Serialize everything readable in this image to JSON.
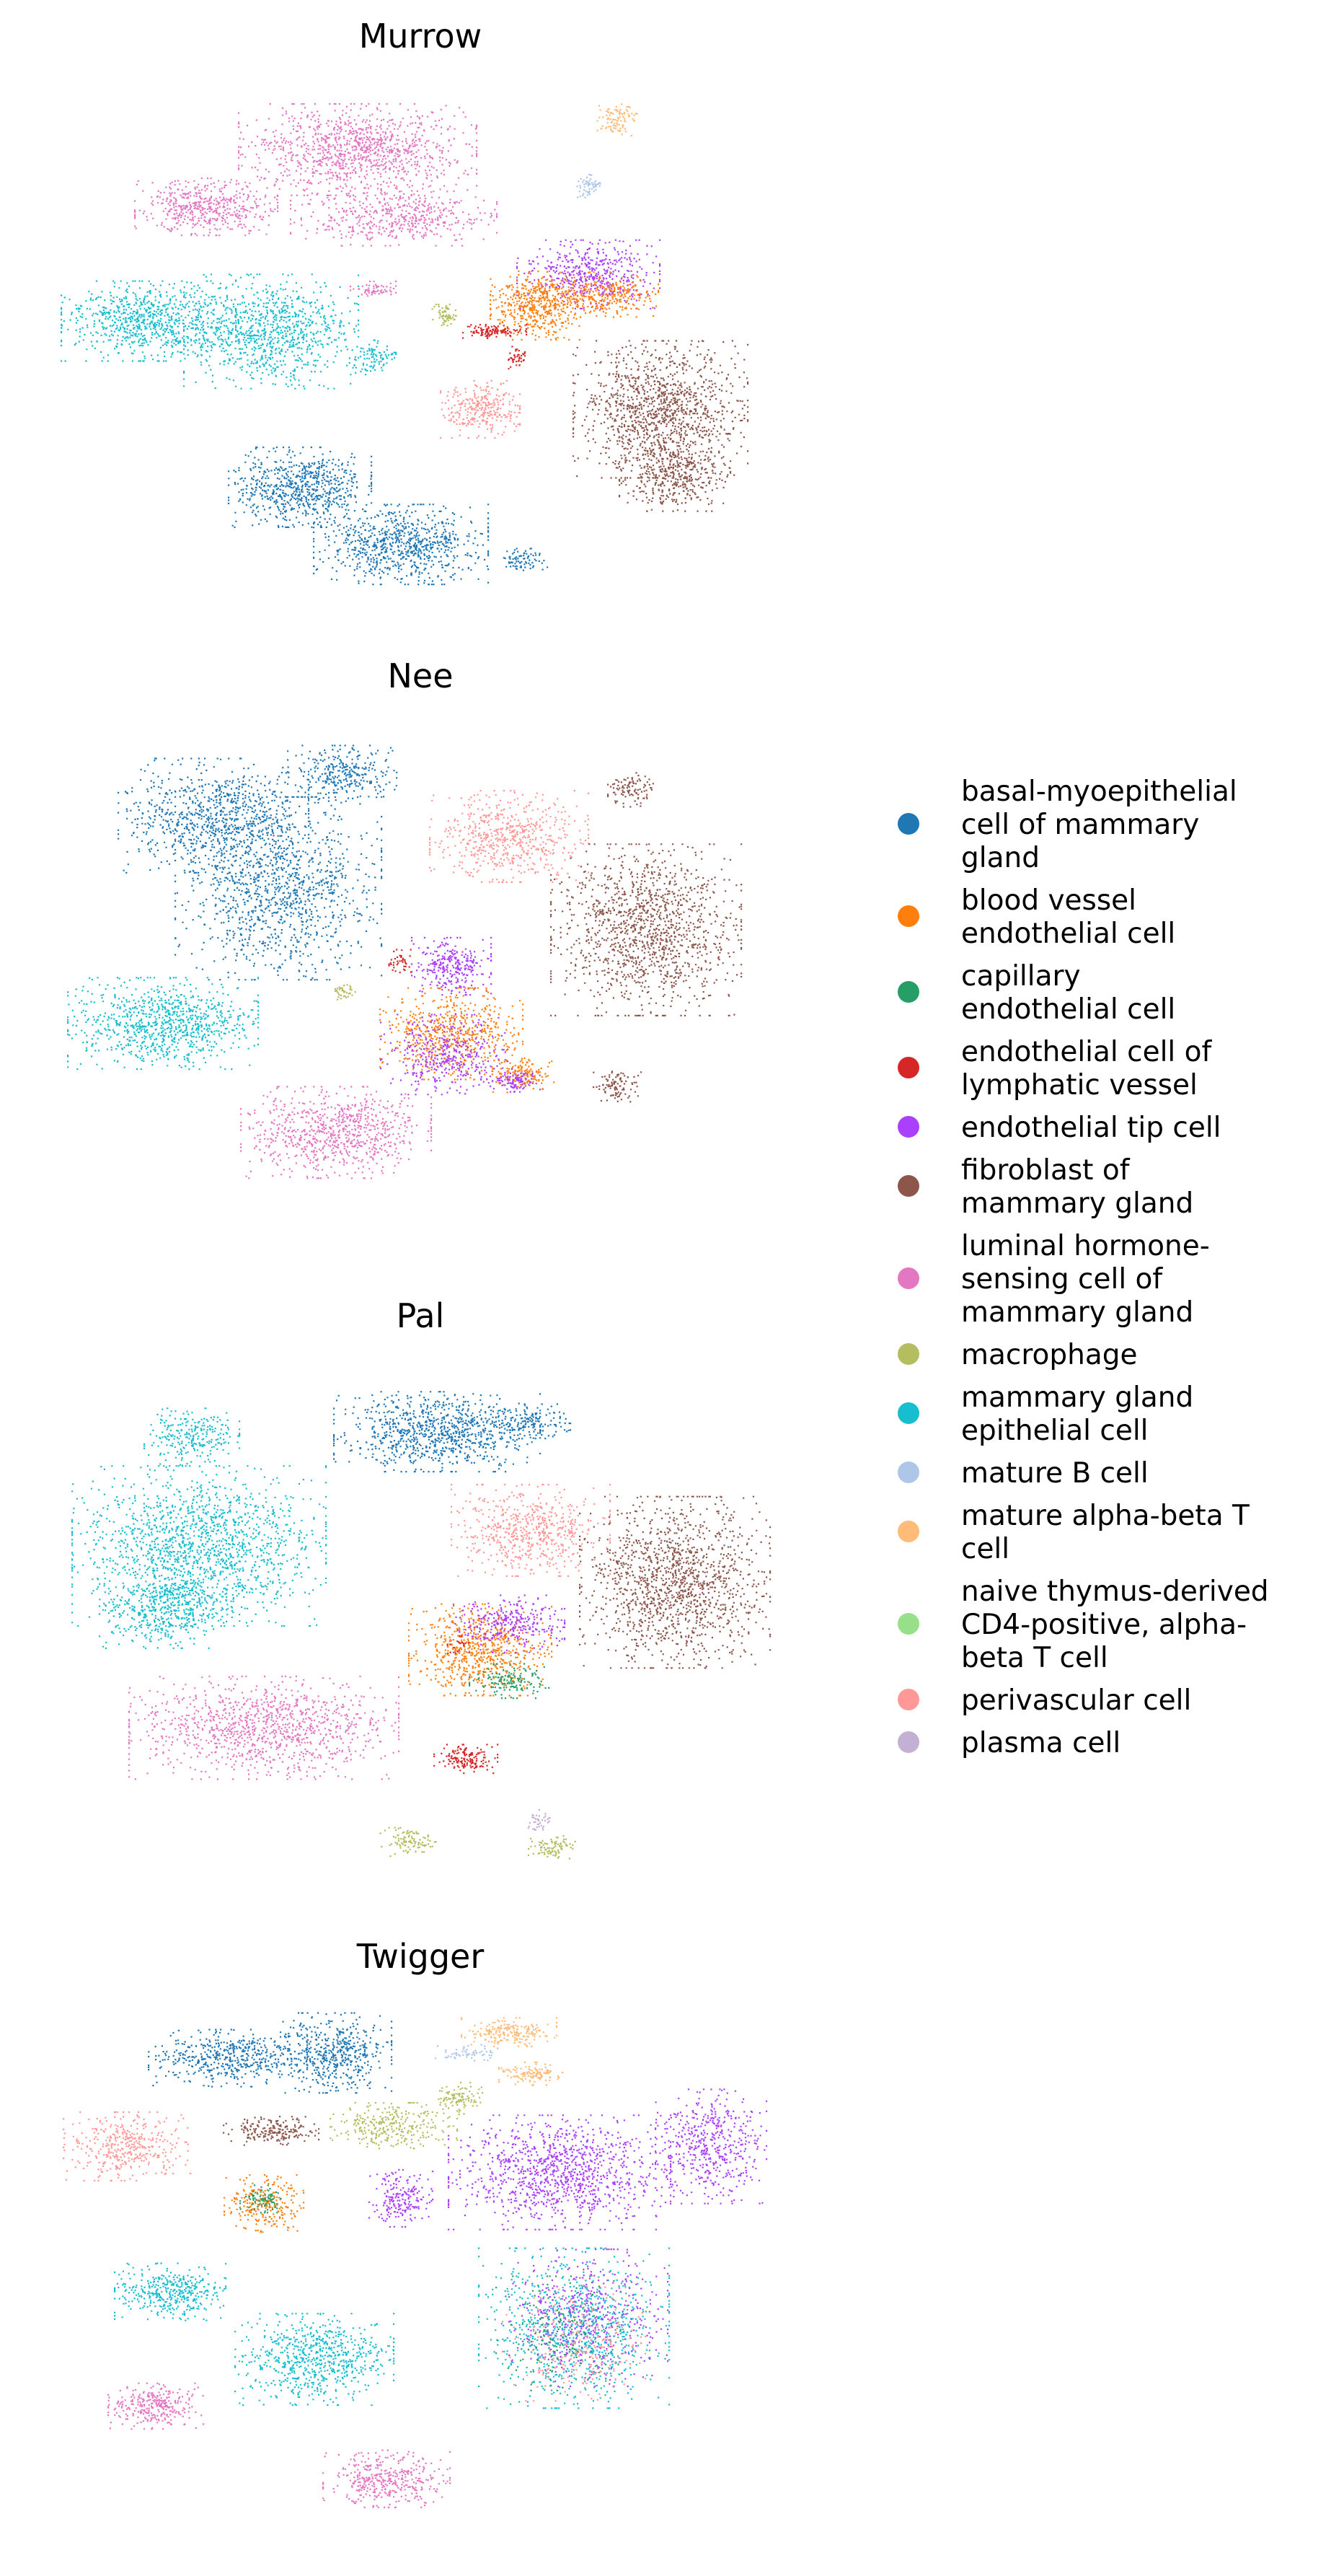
{
  "chart_data": {
    "type": "scatter",
    "subtype": "umap-embedding",
    "grid": false,
    "axes_visible": false,
    "legend_placement": "right",
    "panels": [
      {
        "title": "Murrow",
        "clusters": [
          {
            "cat": "luminal hormone-sensing cell of mammary gland",
            "cx": 0.42,
            "cy": 0.12,
            "rx": 0.15,
            "ry": 0.08,
            "n": 1100
          },
          {
            "cat": "luminal hormone-sensing cell of mammary gland",
            "cx": 0.21,
            "cy": 0.23,
            "rx": 0.09,
            "ry": 0.05,
            "n": 500
          },
          {
            "cat": "luminal hormone-sensing cell of mammary gland",
            "cx": 0.47,
            "cy": 0.25,
            "rx": 0.13,
            "ry": 0.05,
            "n": 500
          },
          {
            "cat": "mammary gland epithelial cell",
            "cx": 0.13,
            "cy": 0.45,
            "rx": 0.11,
            "ry": 0.07,
            "n": 800
          },
          {
            "cat": "mammary gland epithelial cell",
            "cx": 0.3,
            "cy": 0.47,
            "rx": 0.11,
            "ry": 0.1,
            "n": 900
          },
          {
            "cat": "mammary gland epithelial cell",
            "cx": 0.44,
            "cy": 0.52,
            "rx": 0.03,
            "ry": 0.03,
            "n": 100
          },
          {
            "cat": "luminal hormone-sensing cell of mammary gland",
            "cx": 0.44,
            "cy": 0.39,
            "rx": 0.03,
            "ry": 0.015,
            "n": 60
          },
          {
            "cat": "basal-myoepithelial cell of mammary gland",
            "cx": 0.34,
            "cy": 0.77,
            "rx": 0.09,
            "ry": 0.07,
            "n": 700
          },
          {
            "cat": "basal-myoepithelial cell of mammary gland",
            "cx": 0.48,
            "cy": 0.88,
            "rx": 0.11,
            "ry": 0.07,
            "n": 800
          },
          {
            "cat": "basal-myoepithelial cell of mammary gland",
            "cx": 0.65,
            "cy": 0.91,
            "rx": 0.03,
            "ry": 0.02,
            "n": 80
          },
          {
            "cat": "fibroblast of mammary gland",
            "cx": 0.84,
            "cy": 0.62,
            "rx": 0.11,
            "ry": 0.12,
            "n": 1200
          },
          {
            "cat": "fibroblast of mammary gland",
            "cx": 0.86,
            "cy": 0.75,
            "rx": 0.07,
            "ry": 0.06,
            "n": 400
          },
          {
            "cat": "perivascular cell",
            "cx": 0.59,
            "cy": 0.62,
            "rx": 0.05,
            "ry": 0.05,
            "n": 300
          },
          {
            "cat": "endothelial tip cell",
            "cx": 0.74,
            "cy": 0.36,
            "rx": 0.09,
            "ry": 0.06,
            "n": 500
          },
          {
            "cat": "blood vessel endothelial cell",
            "cx": 0.67,
            "cy": 0.42,
            "rx": 0.06,
            "ry": 0.06,
            "n": 500
          },
          {
            "cat": "blood vessel endothelial cell",
            "cx": 0.76,
            "cy": 0.4,
            "rx": 0.07,
            "ry": 0.04,
            "n": 300
          },
          {
            "cat": "endothelial cell of lymphatic vessel",
            "cx": 0.61,
            "cy": 0.47,
            "rx": 0.04,
            "ry": 0.012,
            "n": 120
          },
          {
            "cat": "endothelial cell of lymphatic vessel",
            "cx": 0.64,
            "cy": 0.52,
            "rx": 0.015,
            "ry": 0.02,
            "n": 40
          },
          {
            "cat": "macrophage",
            "cx": 0.54,
            "cy": 0.44,
            "rx": 0.015,
            "ry": 0.02,
            "n": 60
          },
          {
            "cat": "mature alpha-beta T cell",
            "cx": 0.78,
            "cy": 0.06,
            "rx": 0.025,
            "ry": 0.03,
            "n": 100
          },
          {
            "cat": "mature B cell",
            "cx": 0.74,
            "cy": 0.19,
            "rx": 0.015,
            "ry": 0.02,
            "n": 60
          }
        ]
      },
      {
        "title": "Nee",
        "clusters": [
          {
            "cat": "basal-myoepithelial cell of mammary gland",
            "cx": 0.22,
            "cy": 0.18,
            "rx": 0.12,
            "ry": 0.1,
            "n": 800
          },
          {
            "cat": "basal-myoepithelial cell of mammary gland",
            "cx": 0.31,
            "cy": 0.32,
            "rx": 0.13,
            "ry": 0.16,
            "n": 1200
          },
          {
            "cat": "basal-myoepithelial cell of mammary gland",
            "cx": 0.4,
            "cy": 0.1,
            "rx": 0.07,
            "ry": 0.05,
            "n": 300
          },
          {
            "cat": "perivascular cell",
            "cx": 0.63,
            "cy": 0.22,
            "rx": 0.1,
            "ry": 0.08,
            "n": 600
          },
          {
            "cat": "fibroblast of mammary gland",
            "cx": 0.82,
            "cy": 0.4,
            "rx": 0.12,
            "ry": 0.15,
            "n": 1300
          },
          {
            "cat": "fibroblast of mammary gland",
            "cx": 0.8,
            "cy": 0.13,
            "rx": 0.03,
            "ry": 0.03,
            "n": 100
          },
          {
            "cat": "fibroblast of mammary gland",
            "cx": 0.78,
            "cy": 0.7,
            "rx": 0.03,
            "ry": 0.03,
            "n": 100
          },
          {
            "cat": "mammary gland epithelial cell",
            "cx": 0.15,
            "cy": 0.58,
            "rx": 0.12,
            "ry": 0.08,
            "n": 900
          },
          {
            "cat": "luminal hormone-sensing cell of mammary gland",
            "cx": 0.39,
            "cy": 0.79,
            "rx": 0.12,
            "ry": 0.08,
            "n": 800
          },
          {
            "cat": "endothelial tip cell",
            "cx": 0.55,
            "cy": 0.47,
            "rx": 0.05,
            "ry": 0.05,
            "n": 300
          },
          {
            "cat": "blood vessel endothelial cell",
            "cx": 0.55,
            "cy": 0.6,
            "rx": 0.09,
            "ry": 0.08,
            "n": 600
          },
          {
            "cat": "endothelial tip cell",
            "cx": 0.54,
            "cy": 0.64,
            "rx": 0.08,
            "ry": 0.07,
            "n": 400
          },
          {
            "cat": "blood vessel endothelial cell",
            "cx": 0.65,
            "cy": 0.68,
            "rx": 0.04,
            "ry": 0.03,
            "n": 150
          },
          {
            "cat": "endothelial tip cell",
            "cx": 0.64,
            "cy": 0.69,
            "rx": 0.03,
            "ry": 0.02,
            "n": 100
          },
          {
            "cat": "endothelial cell of lymphatic vessel",
            "cx": 0.48,
            "cy": 0.46,
            "rx": 0.015,
            "ry": 0.02,
            "n": 40
          },
          {
            "cat": "macrophage",
            "cx": 0.4,
            "cy": 0.52,
            "rx": 0.015,
            "ry": 0.015,
            "n": 40
          }
        ]
      },
      {
        "title": "Pal",
        "clusters": [
          {
            "cat": "basal-myoepithelial cell of mammary gland",
            "cx": 0.53,
            "cy": 0.13,
            "rx": 0.13,
            "ry": 0.07,
            "n": 900
          },
          {
            "cat": "basal-myoepithelial cell of mammary gland",
            "cx": 0.66,
            "cy": 0.11,
            "rx": 0.05,
            "ry": 0.03,
            "n": 150
          },
          {
            "cat": "mammary gland epithelial cell",
            "cx": 0.2,
            "cy": 0.35,
            "rx": 0.16,
            "ry": 0.14,
            "n": 1500
          },
          {
            "cat": "mammary gland epithelial cell",
            "cx": 0.15,
            "cy": 0.47,
            "rx": 0.08,
            "ry": 0.07,
            "n": 500
          },
          {
            "cat": "mammary gland epithelial cell",
            "cx": 0.19,
            "cy": 0.14,
            "rx": 0.06,
            "ry": 0.05,
            "n": 250
          },
          {
            "cat": "perivascular cell",
            "cx": 0.66,
            "cy": 0.32,
            "rx": 0.1,
            "ry": 0.08,
            "n": 600
          },
          {
            "cat": "fibroblast of mammary gland",
            "cx": 0.86,
            "cy": 0.42,
            "rx": 0.12,
            "ry": 0.15,
            "n": 1400
          },
          {
            "cat": "blood vessel endothelial cell",
            "cx": 0.59,
            "cy": 0.55,
            "rx": 0.09,
            "ry": 0.08,
            "n": 700
          },
          {
            "cat": "endothelial tip cell",
            "cx": 0.63,
            "cy": 0.5,
            "rx": 0.07,
            "ry": 0.05,
            "n": 300
          },
          {
            "cat": "capillary endothelial cell",
            "cx": 0.63,
            "cy": 0.61,
            "rx": 0.05,
            "ry": 0.03,
            "n": 150
          },
          {
            "cat": "endothelial cell of lymphatic vessel",
            "cx": 0.57,
            "cy": 0.76,
            "rx": 0.04,
            "ry": 0.025,
            "n": 150
          },
          {
            "cat": "luminal hormone-sensing cell of mammary gland",
            "cx": 0.29,
            "cy": 0.7,
            "rx": 0.17,
            "ry": 0.09,
            "n": 1100
          },
          {
            "cat": "macrophage",
            "cx": 0.49,
            "cy": 0.92,
            "rx": 0.035,
            "ry": 0.025,
            "n": 100
          },
          {
            "cat": "macrophage",
            "cx": 0.69,
            "cy": 0.93,
            "rx": 0.03,
            "ry": 0.02,
            "n": 90
          },
          {
            "cat": "plasma cell",
            "cx": 0.67,
            "cy": 0.88,
            "rx": 0.015,
            "ry": 0.02,
            "n": 40
          },
          {
            "cat": "endothelial cell of lymphatic vessel",
            "cx": 0.56,
            "cy": 0.54,
            "rx": 0.015,
            "ry": 0.015,
            "n": 20
          }
        ]
      },
      {
        "title": "Twigger",
        "clusters": [
          {
            "cat": "basal-myoepithelial cell of mammary gland",
            "cx": 0.24,
            "cy": 0.1,
            "rx": 0.1,
            "ry": 0.05,
            "n": 500
          },
          {
            "cat": "basal-myoepithelial cell of mammary gland",
            "cx": 0.39,
            "cy": 0.09,
            "rx": 0.07,
            "ry": 0.07,
            "n": 500
          },
          {
            "cat": "mature alpha-beta T cell",
            "cx": 0.63,
            "cy": 0.05,
            "rx": 0.06,
            "ry": 0.025,
            "n": 200
          },
          {
            "cat": "mature alpha-beta T cell",
            "cx": 0.66,
            "cy": 0.13,
            "rx": 0.04,
            "ry": 0.02,
            "n": 120
          },
          {
            "cat": "mature B cell",
            "cx": 0.57,
            "cy": 0.09,
            "rx": 0.04,
            "ry": 0.015,
            "n": 60
          },
          {
            "cat": "macrophage",
            "cx": 0.47,
            "cy": 0.23,
            "rx": 0.08,
            "ry": 0.04,
            "n": 300
          },
          {
            "cat": "macrophage",
            "cx": 0.56,
            "cy": 0.18,
            "rx": 0.03,
            "ry": 0.03,
            "n": 100
          },
          {
            "cat": "fibroblast of mammary gland",
            "cx": 0.3,
            "cy": 0.24,
            "rx": 0.06,
            "ry": 0.025,
            "n": 200
          },
          {
            "cat": "perivascular cell",
            "cx": 0.1,
            "cy": 0.27,
            "rx": 0.08,
            "ry": 0.06,
            "n": 400
          },
          {
            "cat": "blood vessel endothelial cell",
            "cx": 0.29,
            "cy": 0.38,
            "rx": 0.05,
            "ry": 0.05,
            "n": 250
          },
          {
            "cat": "capillary endothelial cell",
            "cx": 0.29,
            "cy": 0.37,
            "rx": 0.03,
            "ry": 0.025,
            "n": 80
          },
          {
            "cat": "endothelial tip cell",
            "cx": 0.48,
            "cy": 0.37,
            "rx": 0.04,
            "ry": 0.05,
            "n": 200
          },
          {
            "cat": "endothelial tip cell",
            "cx": 0.7,
            "cy": 0.32,
            "rx": 0.14,
            "ry": 0.1,
            "n": 1100
          },
          {
            "cat": "endothelial tip cell",
            "cx": 0.91,
            "cy": 0.27,
            "rx": 0.07,
            "ry": 0.1,
            "n": 500
          },
          {
            "cat": "mammary gland epithelial cell",
            "cx": 0.16,
            "cy": 0.55,
            "rx": 0.07,
            "ry": 0.05,
            "n": 400
          },
          {
            "cat": "mammary gland epithelial cell",
            "cx": 0.36,
            "cy": 0.68,
            "rx": 0.1,
            "ry": 0.08,
            "n": 700
          },
          {
            "cat": "mammary gland epithelial cell",
            "cx": 0.72,
            "cy": 0.62,
            "rx": 0.12,
            "ry": 0.14,
            "n": 900
          },
          {
            "cat": "endothelial tip cell",
            "cx": 0.74,
            "cy": 0.6,
            "rx": 0.1,
            "ry": 0.12,
            "n": 500
          },
          {
            "cat": "perivascular cell",
            "cx": 0.72,
            "cy": 0.65,
            "rx": 0.09,
            "ry": 0.1,
            "n": 250
          },
          {
            "cat": "capillary endothelial cell",
            "cx": 0.7,
            "cy": 0.63,
            "rx": 0.08,
            "ry": 0.1,
            "n": 150
          },
          {
            "cat": "luminal hormone-sensing cell of mammary gland",
            "cx": 0.14,
            "cy": 0.77,
            "rx": 0.06,
            "ry": 0.04,
            "n": 300
          },
          {
            "cat": "luminal hormone-sensing cell of mammary gland",
            "cx": 0.46,
            "cy": 0.91,
            "rx": 0.08,
            "ry": 0.05,
            "n": 400
          }
        ]
      }
    ],
    "legend": {
      "title": "",
      "entries": [
        {
          "label_lines": [
            "basal-myoepithelial",
            "cell of mammary",
            "gland"
          ],
          "label": "basal-myoepithelial cell of mammary gland",
          "color": "#1f77b4"
        },
        {
          "label_lines": [
            "blood vessel",
            "endothelial cell"
          ],
          "label": "blood vessel endothelial cell",
          "color": "#ff7f0e"
        },
        {
          "label_lines": [
            "capillary",
            "endothelial cell"
          ],
          "label": "capillary endothelial cell",
          "color": "#279e68"
        },
        {
          "label_lines": [
            "endothelial cell of",
            "lymphatic vessel"
          ],
          "label": "endothelial cell of lymphatic vessel",
          "color": "#d62728"
        },
        {
          "label_lines": [
            "endothelial tip cell"
          ],
          "label": "endothelial tip cell",
          "color": "#aa40fc"
        },
        {
          "label_lines": [
            "fibroblast of",
            "mammary gland"
          ],
          "label": "fibroblast of mammary gland",
          "color": "#8c564b"
        },
        {
          "label_lines": [
            "luminal hormone-",
            "sensing cell of",
            "mammary gland"
          ],
          "label": "luminal hormone-sensing cell of mammary gland",
          "color": "#e377c2"
        },
        {
          "label_lines": [
            "macrophage"
          ],
          "label": "macrophage",
          "color": "#b5bd61"
        },
        {
          "label_lines": [
            "mammary gland",
            "epithelial cell"
          ],
          "label": "mammary gland epithelial cell",
          "color": "#17becf"
        },
        {
          "label_lines": [
            "mature B cell"
          ],
          "label": "mature B cell",
          "color": "#aec7e8"
        },
        {
          "label_lines": [
            "mature alpha-beta T",
            "cell"
          ],
          "label": "mature alpha-beta T cell",
          "color": "#ffbb78"
        },
        {
          "label_lines": [
            "naive thymus-derived",
            "CD4-positive, alpha-",
            "beta T cell"
          ],
          "label": "naive thymus-derived CD4-positive, alpha-beta T cell",
          "color": "#98df8a"
        },
        {
          "label_lines": [
            "perivascular cell"
          ],
          "label": "perivascular cell",
          "color": "#ff9896"
        },
        {
          "label_lines": [
            "plasma cell"
          ],
          "label": "plasma cell",
          "color": "#c5b0d5"
        }
      ]
    }
  }
}
